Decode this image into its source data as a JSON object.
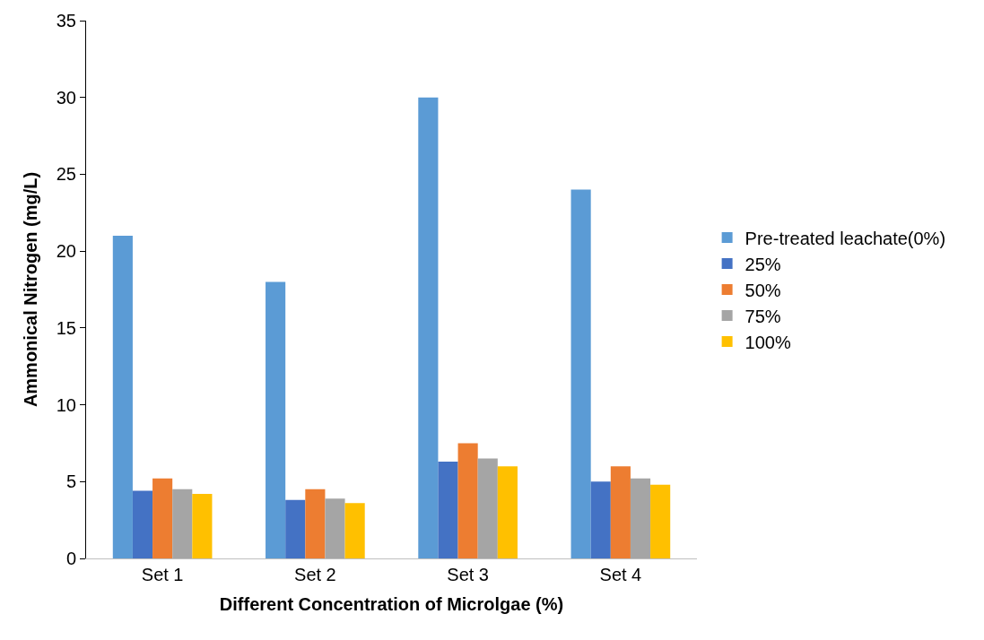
{
  "chart_data": {
    "type": "bar",
    "xlabel": "Different Concentration of Microlgae (%)",
    "ylabel": "Ammonical Nitrogen (mg/L)",
    "categories": [
      "Set 1",
      "Set 2",
      "Set 3",
      "Set 4"
    ],
    "series": [
      {
        "name": "Pre-treated leachate(0%)",
        "color": "#5b9bd5",
        "values": [
          21,
          18,
          30,
          24
        ]
      },
      {
        "name": "25%",
        "color": "#4472c4",
        "values": [
          4.4,
          3.8,
          6.3,
          5.0
        ]
      },
      {
        "name": "50%",
        "color": "#ed7d31",
        "values": [
          5.2,
          4.5,
          7.5,
          6.0
        ]
      },
      {
        "name": "75%",
        "color": "#a5a5a5",
        "values": [
          4.5,
          3.9,
          6.5,
          5.2
        ]
      },
      {
        "name": "100%",
        "color": "#ffc000",
        "values": [
          4.2,
          3.6,
          6.0,
          4.8
        ]
      }
    ],
    "ylim": [
      0,
      35
    ],
    "yticks": [
      0,
      5,
      10,
      15,
      20,
      25,
      30,
      35
    ],
    "grid": false,
    "legend": "right"
  }
}
